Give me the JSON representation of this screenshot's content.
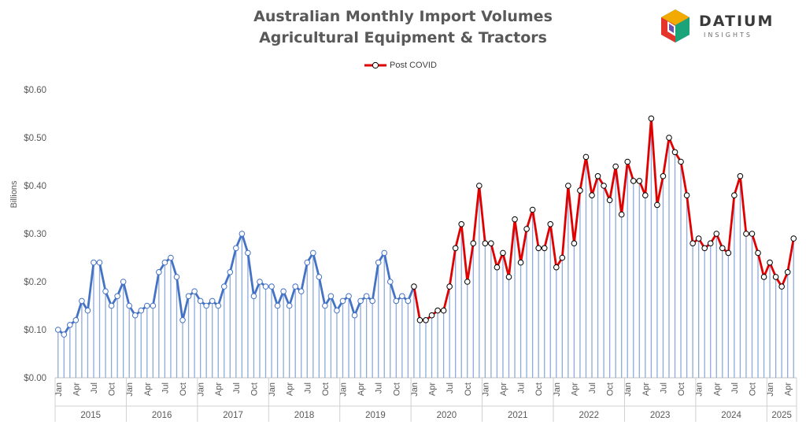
{
  "header": {
    "title_line1": "Australian Monthly Import Volumes",
    "title_line2": "Agricultural Equipment & Tractors"
  },
  "logo": {
    "name": "DATIUM",
    "sub": "INSIGHTS",
    "icon": "datium-cube-icon"
  },
  "legend": {
    "label": "Post COVID"
  },
  "colors": {
    "pre_covid_line": "#4472C4",
    "post_covid_line": "#E00000",
    "drop_line": "#8EA9DB",
    "axis_text": "#595959",
    "grid": "#d9d9d9"
  },
  "chart_data": {
    "type": "line",
    "title": "Australian Monthly Import Volumes Agricultural Equipment & Tractors",
    "ylabel": "Billions",
    "xlabel": "",
    "ylim": [
      0,
      0.6
    ],
    "yticks": [
      "$0.00",
      "$0.10",
      "$0.20",
      "$0.30",
      "$0.40",
      "$0.50",
      "$0.60"
    ],
    "ytick_values": [
      0,
      0.1,
      0.2,
      0.3,
      0.4,
      0.5,
      0.6
    ],
    "month_tick_labels": [
      "Jan",
      "Apr",
      "Jul",
      "Oct"
    ],
    "years": [
      "2015",
      "2016",
      "2017",
      "2018",
      "2019",
      "2020",
      "2021",
      "2022",
      "2023",
      "2024",
      "2025"
    ],
    "start": "2015-01",
    "end": "2025-05",
    "post_covid_start": "2020-01",
    "legend_position": "top-center",
    "grid": false,
    "series": [
      {
        "name": "Post COVID",
        "values": [
          0.1,
          0.09,
          0.11,
          0.12,
          0.16,
          0.14,
          0.24,
          0.24,
          0.18,
          0.15,
          0.17,
          0.2,
          0.15,
          0.13,
          0.14,
          0.15,
          0.15,
          0.22,
          0.24,
          0.25,
          0.21,
          0.12,
          0.17,
          0.18,
          0.16,
          0.15,
          0.16,
          0.15,
          0.19,
          0.22,
          0.27,
          0.3,
          0.26,
          0.17,
          0.2,
          0.19,
          0.19,
          0.15,
          0.18,
          0.15,
          0.19,
          0.18,
          0.24,
          0.26,
          0.21,
          0.15,
          0.17,
          0.14,
          0.16,
          0.17,
          0.13,
          0.16,
          0.17,
          0.16,
          0.24,
          0.26,
          0.2,
          0.16,
          0.17,
          0.16,
          0.19,
          0.12,
          0.12,
          0.13,
          0.14,
          0.14,
          0.19,
          0.27,
          0.32,
          0.2,
          0.28,
          0.4,
          0.28,
          0.28,
          0.23,
          0.26,
          0.21,
          0.33,
          0.24,
          0.31,
          0.35,
          0.27,
          0.27,
          0.32,
          0.23,
          0.25,
          0.4,
          0.28,
          0.39,
          0.46,
          0.38,
          0.42,
          0.4,
          0.37,
          0.44,
          0.34,
          0.45,
          0.41,
          0.41,
          0.38,
          0.54,
          0.36,
          0.42,
          0.5,
          0.47,
          0.45,
          0.38,
          0.28,
          0.29,
          0.27,
          0.28,
          0.3,
          0.27,
          0.26,
          0.38,
          0.42,
          0.3,
          0.3,
          0.26,
          0.21,
          0.24,
          0.21,
          0.19,
          0.22,
          0.29
        ]
      }
    ]
  }
}
